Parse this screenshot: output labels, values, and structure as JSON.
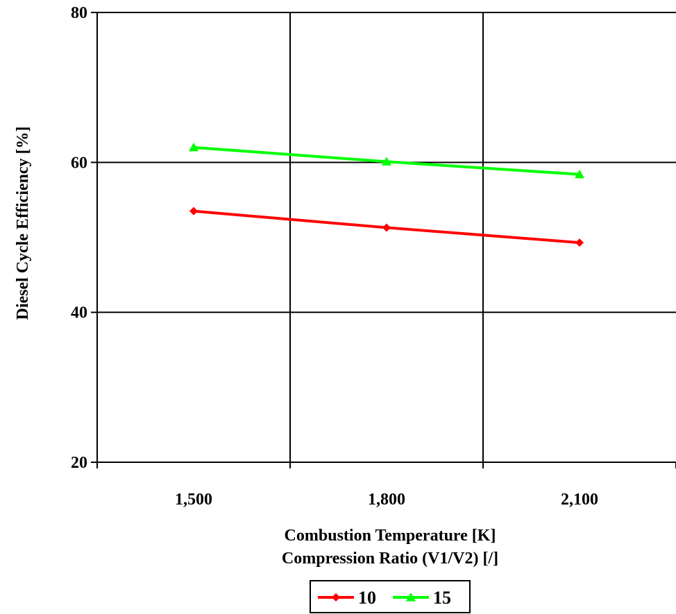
{
  "chart_data": {
    "type": "line",
    "categories": [
      "1,500",
      "1,800",
      "2,100"
    ],
    "series": [
      {
        "name": "10",
        "values": [
          53.5,
          51.3,
          49.3
        ],
        "color": "#ff0000",
        "marker": "diamond"
      },
      {
        "name": "15",
        "values": [
          62.0,
          60.1,
          58.4
        ],
        "color": "#00ff00",
        "marker": "triangle"
      }
    ],
    "ylim": [
      20,
      80
    ],
    "yticks": [
      "20",
      "40",
      "60",
      "80"
    ],
    "xlabel": [
      "Combustion Temperature [K]",
      "Compression Ratio (V1/V2) [/]"
    ],
    "ylabel": "Diesel Cycle Efficiency [%]",
    "grid": true,
    "legend_position": "bottom"
  }
}
